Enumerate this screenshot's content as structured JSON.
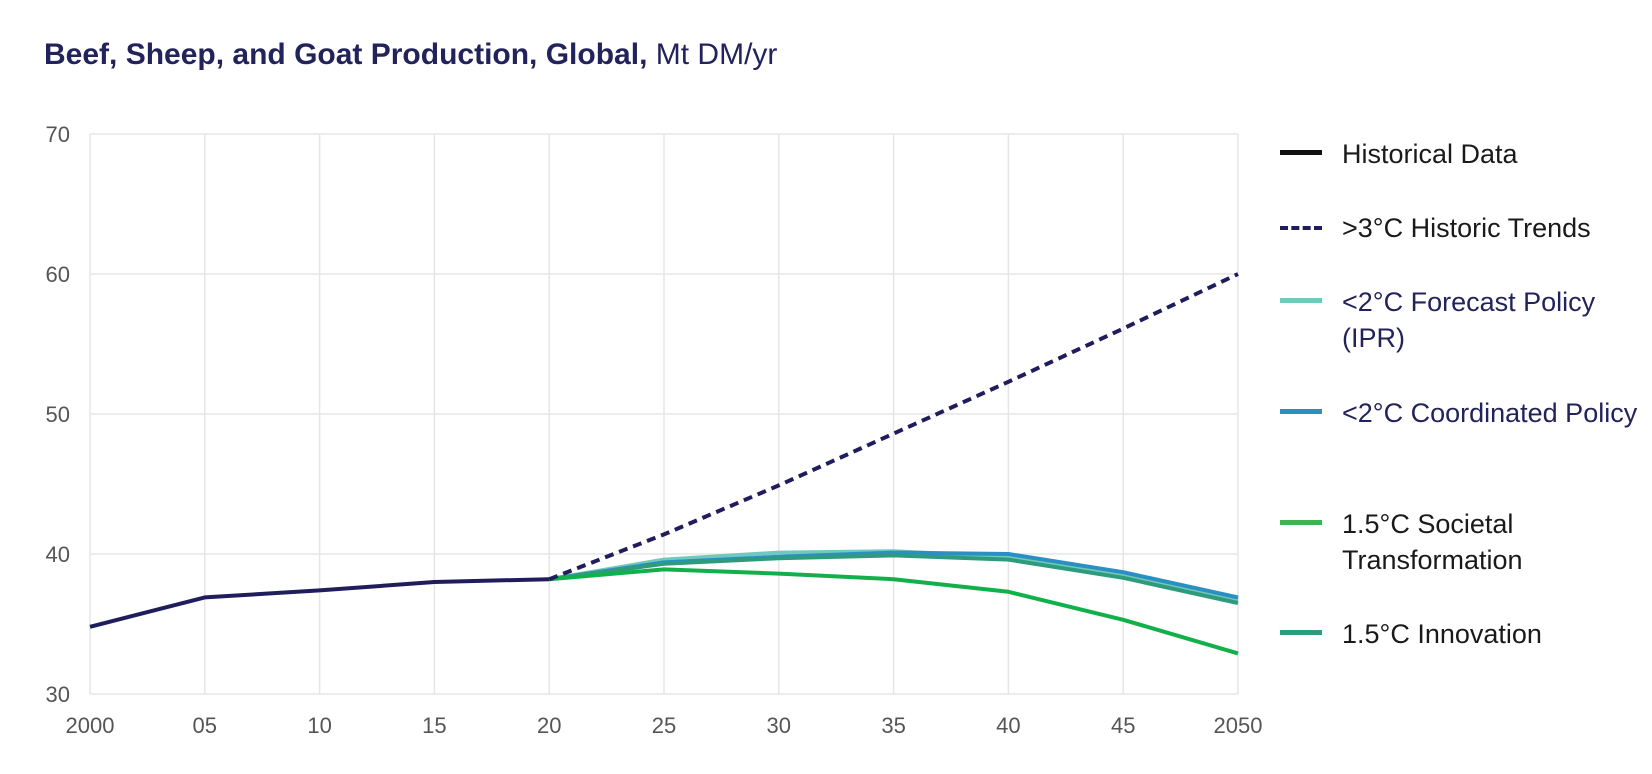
{
  "title": {
    "bold": "Beef, Sheep, and Goat Production, Global,",
    "unit": "Mt DM/yr"
  },
  "chart_data": {
    "type": "line",
    "title": "Beef, Sheep, and Goat Production, Global, Mt DM/yr",
    "xlabel": "",
    "ylabel": "",
    "xlim": [
      2000,
      2050
    ],
    "ylim": [
      30,
      70
    ],
    "x_ticks": [
      2000,
      2005,
      2010,
      2015,
      2020,
      2025,
      2030,
      2035,
      2040,
      2045,
      2050
    ],
    "x_tick_labels": [
      "2000",
      "05",
      "10",
      "15",
      "20",
      "25",
      "30",
      "35",
      "40",
      "45",
      "2050"
    ],
    "y_ticks": [
      30,
      40,
      50,
      60,
      70
    ],
    "y_tick_labels": [
      "30",
      "40",
      "50",
      "60",
      "70"
    ],
    "grid": true,
    "legend_position": "right",
    "series": [
      {
        "name": "Historical Data",
        "color": "#1f1d5c",
        "dash": false,
        "x": [
          2000,
          2005,
          2010,
          2015,
          2020
        ],
        "y": [
          34.8,
          36.9,
          37.4,
          38.0,
          38.2
        ]
      },
      {
        "name": ">3°C Historic Trends",
        "color": "#1f1d5c",
        "dash": true,
        "x": [
          2020,
          2025,
          2030,
          2035,
          2040,
          2045,
          2050
        ],
        "y": [
          38.2,
          41.4,
          44.9,
          48.6,
          52.3,
          56.1,
          60.0
        ]
      },
      {
        "name": "<2°C Forecast Policy (IPR)",
        "color": "#6fcabc",
        "dash": false,
        "x": [
          2020,
          2025,
          2030,
          2035,
          2040,
          2045,
          2050
        ],
        "y": [
          38.2,
          39.6,
          40.1,
          40.2,
          39.8,
          38.5,
          36.7
        ]
      },
      {
        "name": "<2°C Coordinated Policy",
        "color": "#2b8fc4",
        "dash": false,
        "x": [
          2020,
          2025,
          2030,
          2035,
          2040,
          2045,
          2050
        ],
        "y": [
          38.2,
          39.4,
          39.8,
          40.1,
          40.0,
          38.7,
          36.9
        ]
      },
      {
        "name": "1.5°C Societal Transformation",
        "color": "#12b04a",
        "dash": false,
        "x": [
          2020,
          2025,
          2030,
          2035,
          2040,
          2045,
          2050
        ],
        "y": [
          38.2,
          38.9,
          38.6,
          38.2,
          37.3,
          35.3,
          32.9
        ]
      },
      {
        "name": "1.5°C Innovation",
        "color": "#2e9b7c",
        "dash": false,
        "x": [
          2020,
          2025,
          2030,
          2035,
          2040,
          2045,
          2050
        ],
        "y": [
          38.2,
          39.3,
          39.7,
          39.9,
          39.6,
          38.3,
          36.5
        ]
      }
    ]
  },
  "legend": [
    {
      "label": "Historical Data",
      "color": "#111111",
      "dashed": false
    },
    {
      "label": ">3°C Historic Trends",
      "color": "#1f1d5c",
      "dashed": true
    },
    {
      "label": "<2°C Forecast Policy (IPR)",
      "color": "#6fcabc",
      "dashed": false
    },
    {
      "label": "<2°C Coordinated Policy",
      "color": "#2b8fc4",
      "dashed": false
    },
    {
      "label": "1.5°C Societal Transformation",
      "color": "#3fb34f",
      "dashed": false
    },
    {
      "label": "1.5°C Innovation",
      "color": "#2e9b7c",
      "dashed": false
    }
  ]
}
